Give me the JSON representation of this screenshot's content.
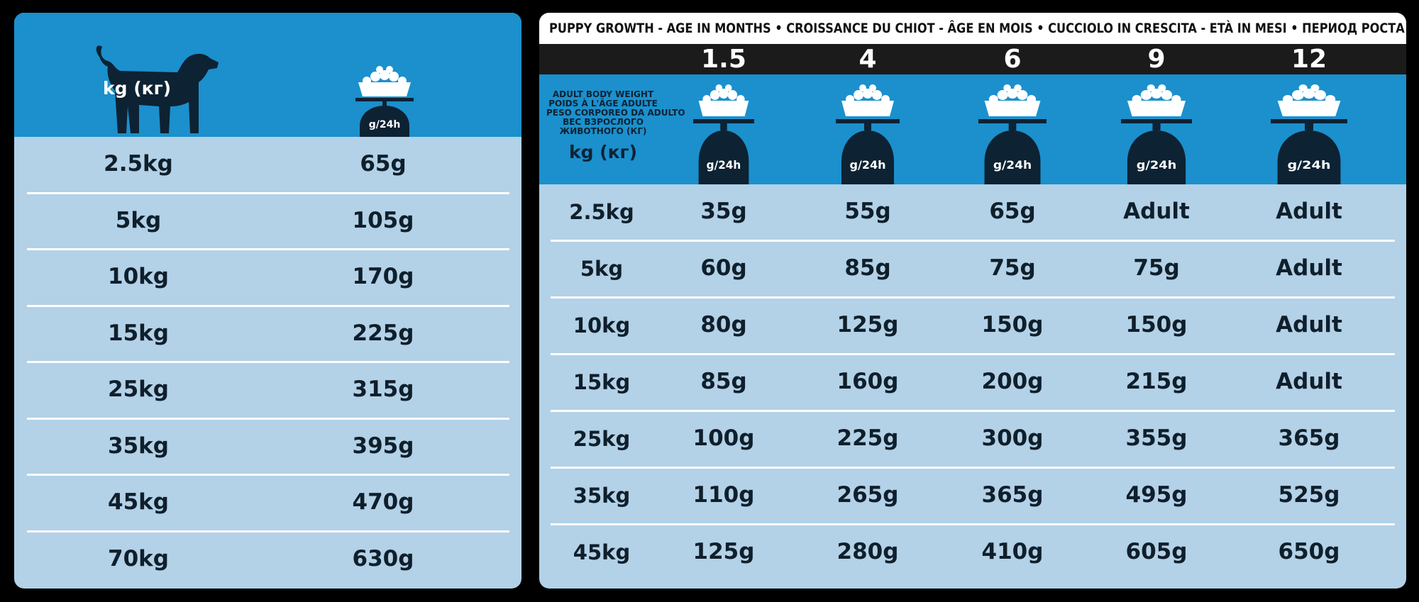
{
  "left_table": {
    "weight_label": "kg (кг)",
    "bowl_label": "g/24h",
    "rows": [
      {
        "weight": "2.5kg",
        "amount": "65g"
      },
      {
        "weight": "5kg",
        "amount": "105g"
      },
      {
        "weight": "10kg",
        "amount": "170g"
      },
      {
        "weight": "15kg",
        "amount": "225g"
      },
      {
        "weight": "25kg",
        "amount": "315g"
      },
      {
        "weight": "35kg",
        "amount": "395g"
      },
      {
        "weight": "45kg",
        "amount": "470g"
      },
      {
        "weight": "70kg",
        "amount": "630g"
      }
    ]
  },
  "right_table": {
    "title": "PUPPY GROWTH - AGE IN MONTHS • CROISSANCE DU CHIOT - ÂGE EN MOIS • CUCCIOLO IN CRESCITA - ETÀ IN MESI • ПЕРИОД РОСТА - ВОЗРАСТ ЩЕНКА, МЕС",
    "ages": [
      "1.5",
      "4",
      "6",
      "9",
      "12"
    ],
    "adult_weight_labels": [
      "ADULT BODY WEIGHT",
      "POIDS À L'ÂGE ADULTE",
      "PESO CORPOREO DA ADULTO",
      "ВЕС ВЗРОСЛОГО",
      "ЖИВОТНОГО (КГ)"
    ],
    "weight_unit": "kg (кг)",
    "bowl_label": "g/24h",
    "rows": [
      {
        "weight": "2.5kg",
        "values": [
          "35g",
          "55g",
          "65g",
          "Adult",
          "Adult"
        ]
      },
      {
        "weight": "5kg",
        "values": [
          "60g",
          "85g",
          "75g",
          "75g",
          "Adult"
        ]
      },
      {
        "weight": "10kg",
        "values": [
          "80g",
          "125g",
          "150g",
          "150g",
          "Adult"
        ]
      },
      {
        "weight": "15kg",
        "values": [
          "85g",
          "160g",
          "200g",
          "215g",
          "Adult"
        ]
      },
      {
        "weight": "25kg",
        "values": [
          "100g",
          "225g",
          "300g",
          "355g",
          "365g"
        ]
      },
      {
        "weight": "35kg",
        "values": [
          "110g",
          "265g",
          "365g",
          "495g",
          "525g"
        ]
      },
      {
        "weight": "45kg",
        "values": [
          "125g",
          "280g",
          "410g",
          "605g",
          "650g"
        ]
      }
    ]
  },
  "colors": {
    "header_blue": "#1b90cd",
    "row_blue": "#b3d1e7",
    "dark": "#0d2233"
  },
  "icons": [
    "dog-icon",
    "food-bowl-scale-icon"
  ]
}
